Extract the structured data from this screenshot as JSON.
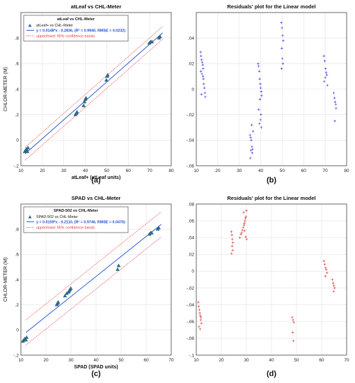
{
  "panels": [
    {
      "label": "(a)",
      "chart_data": {
        "type": "scatter",
        "title": "atLeaf vs CHL-Meter",
        "xlabel": "atLeaf+ (atLeaf units)",
        "ylabel": "CHLOR-METER (M)",
        "xlim": [
          10,
          80
        ],
        "ylim": [
          -0.2,
          1.0
        ],
        "xticks": [
          10,
          20,
          30,
          40,
          50,
          60,
          70,
          80
        ],
        "yticks": [
          -0.2,
          0,
          0.2,
          0.4,
          0.6,
          0.8
        ],
        "grid": true,
        "legend_position": "top-left",
        "legend_title": "atLeaf vs CHL-Meter",
        "legend": [
          "atLeaf+ vs CHL-Meter",
          "y = 0.0148*x - 0.2836, (R² = 0.9940, RMSE = 0.0232)",
          "upper/lower 95% confidence bands"
        ],
        "fit": {
          "slope": 0.0148,
          "intercept": -0.2836,
          "band": 0.05
        },
        "series": [
          {
            "name": "atLeaf+ vs CHL-Meter",
            "x": [
              11.8,
              12.2,
              12.6,
              13.0,
              13.3,
              35.4,
              35.8,
              36.1,
              39.2,
              39.6,
              40.0,
              40.3,
              49.8,
              50.1,
              50.4,
              69.8,
              70.4,
              71.0,
              74.3,
              74.8
            ],
            "y": [
              -0.09,
              -0.08,
              -0.07,
              -0.09,
              -0.06,
              0.2,
              0.21,
              0.22,
              0.27,
              0.3,
              0.32,
              0.33,
              0.47,
              0.5,
              0.51,
              0.76,
              0.77,
              0.77,
              0.8,
              0.81
            ]
          }
        ],
        "colors": {
          "points": "#2f6f8c",
          "fit": "#1f4fd6",
          "bands": "#e23a3a"
        }
      }
    },
    {
      "label": "(b)",
      "chart_data": {
        "type": "scatter",
        "title": "Residuals' plot for the Linear model",
        "xlabel": "",
        "ylabel": "",
        "xlim": [
          10,
          80
        ],
        "ylim": [
          -0.06,
          0.06
        ],
        "xticks": [
          10,
          20,
          30,
          40,
          50,
          60,
          70,
          80
        ],
        "yticks": [
          -0.06,
          -0.04,
          -0.02,
          0,
          0.02,
          0.04
        ],
        "grid": true,
        "series": [
          {
            "name": "",
            "x": [
              12.0,
              12.2,
              12.5,
              12.8,
              13.0,
              13.2,
              12.1,
              12.6,
              13.1,
              13.3,
              13.5,
              13.8,
              14.0,
              14.2,
              12.4,
              35.0,
              35.3,
              35.6,
              35.9,
              36.2,
              35.5,
              36.0,
              35.2,
              35.8,
              36.4,
              38.8,
              39.0,
              39.3,
              39.5,
              39.8,
              40.0,
              40.2,
              40.4,
              39.6,
              39.1,
              40.1,
              39.9,
              39.4,
              40.3,
              49.6,
              49.9,
              50.2,
              50.5,
              49.8,
              50.1,
              50.3,
              49.7,
              69.4,
              69.8,
              70.2,
              70.5,
              70.8,
              70.0,
              69.6,
              71.0,
              74.0,
              74.3,
              74.6,
              74.9,
              75.1,
              74.5
            ],
            "y": [
              0.029,
              0.026,
              0.023,
              0.021,
              0.019,
              0.016,
              0.014,
              0.012,
              0.01,
              0.008,
              0.004,
              0.001,
              -0.003,
              -0.006,
              -0.004,
              -0.036,
              -0.038,
              -0.04,
              -0.045,
              -0.047,
              -0.048,
              -0.05,
              -0.054,
              -0.028,
              -0.033,
              0.02,
              0.018,
              0.014,
              0.008,
              0.004,
              0.001,
              -0.002,
              -0.005,
              -0.008,
              -0.016,
              -0.02,
              -0.024,
              -0.027,
              -0.03,
              0.052,
              0.048,
              0.042,
              0.038,
              0.032,
              0.024,
              0.02,
              0.016,
              0.026,
              0.022,
              0.016,
              0.013,
              0.011,
              0.009,
              0.006,
              0.003,
              -0.003,
              -0.007,
              -0.01,
              -0.012,
              -0.015,
              -0.025
            ]
          }
        ],
        "colors": {
          "points": "#2a2ad8"
        }
      }
    },
    {
      "label": "(c)",
      "chart_data": {
        "type": "scatter",
        "title": "SPAD vs CHL-Meter",
        "xlabel": "SPAD (SPAD units)",
        "ylabel": "CHLOR-METER (M)",
        "xlim": [
          10,
          70
        ],
        "ylim": [
          -0.2,
          1.0
        ],
        "xticks": [
          10,
          20,
          30,
          40,
          50,
          60,
          70
        ],
        "yticks": [
          -0.2,
          0,
          0.2,
          0.4,
          0.6,
          0.8
        ],
        "grid": true,
        "legend_position": "top-left",
        "legend_title": "SPAD-502 vs CHL-Meter",
        "legend": [
          "SPAD-502 vs CHL-Meter",
          "y = 0.0159*x - 0.2110, (R² = 0.9746, RMSE = 0.0476)",
          "upper/lower 95% confidence bands"
        ],
        "fit": {
          "slope": 0.0159,
          "intercept": -0.211,
          "band": 0.1
        },
        "series": [
          {
            "name": "SPAD-502 vs CHL-Meter",
            "x": [
              10.8,
              11.2,
              11.6,
              12.0,
              12.3,
              24.3,
              24.6,
              24.9,
              27.6,
              28.3,
              29.0,
              29.3,
              29.6,
              29.9,
              48.6,
              49.0,
              61.3,
              61.8,
              62.2,
              64.6,
              65.0
            ],
            "y": [
              -0.09,
              -0.08,
              -0.07,
              -0.08,
              -0.06,
              0.2,
              0.21,
              0.22,
              0.27,
              0.29,
              0.3,
              0.31,
              0.32,
              0.33,
              0.48,
              0.51,
              0.76,
              0.77,
              0.77,
              0.8,
              0.81
            ]
          }
        ],
        "colors": {
          "points": "#2f6f8c",
          "fit": "#1f4fd6",
          "bands": "#e23a3a"
        }
      }
    },
    {
      "label": "(d)",
      "chart_data": {
        "type": "scatter",
        "title": "Residuals' plot for the Linear model",
        "xlabel": "",
        "ylabel": "",
        "xlim": [
          10,
          70
        ],
        "ylim": [
          -0.1,
          0.08
        ],
        "xticks": [
          10,
          20,
          30,
          40,
          50,
          60,
          70
        ],
        "yticks": [
          -0.1,
          -0.08,
          -0.06,
          -0.04,
          -0.02,
          0,
          0.02,
          0.04,
          0.06,
          0.08
        ],
        "grid": true,
        "series": [
          {
            "name": "",
            "x": [
              10.8,
              11.0,
              11.2,
              11.4,
              11.6,
              11.8,
              12.0,
              11.1,
              11.5,
              11.9,
              24.0,
              24.2,
              24.4,
              24.6,
              24.3,
              24.5,
              24.1,
              27.4,
              27.8,
              28.1,
              28.4,
              28.7,
              29.0,
              29.2,
              29.4,
              29.6,
              29.8,
              30.0,
              28.9,
              29.3,
              29.7,
              30.1,
              48.3,
              48.6,
              48.9,
              48.5,
              48.8,
              61.0,
              61.3,
              61.6,
              61.9,
              62.2,
              61.5,
              64.3,
              64.6,
              64.9,
              65.2,
              64.8
            ],
            "y": [
              -0.037,
              -0.042,
              -0.046,
              -0.05,
              -0.053,
              -0.058,
              -0.062,
              -0.066,
              -0.069,
              -0.055,
              0.047,
              0.043,
              0.038,
              0.034,
              0.03,
              0.025,
              0.021,
              0.04,
              0.044,
              0.046,
              0.049,
              0.052,
              0.055,
              0.057,
              0.06,
              0.063,
              0.065,
              0.072,
              0.07,
              0.048,
              0.041,
              0.038,
              -0.055,
              -0.058,
              -0.061,
              -0.073,
              -0.083,
              0.012,
              0.008,
              0.004,
              0.002,
              -0.002,
              -0.006,
              -0.01,
              -0.014,
              -0.017,
              -0.02,
              -0.024
            ]
          }
        ],
        "colors": {
          "points": "#d42a2a"
        }
      }
    }
  ]
}
